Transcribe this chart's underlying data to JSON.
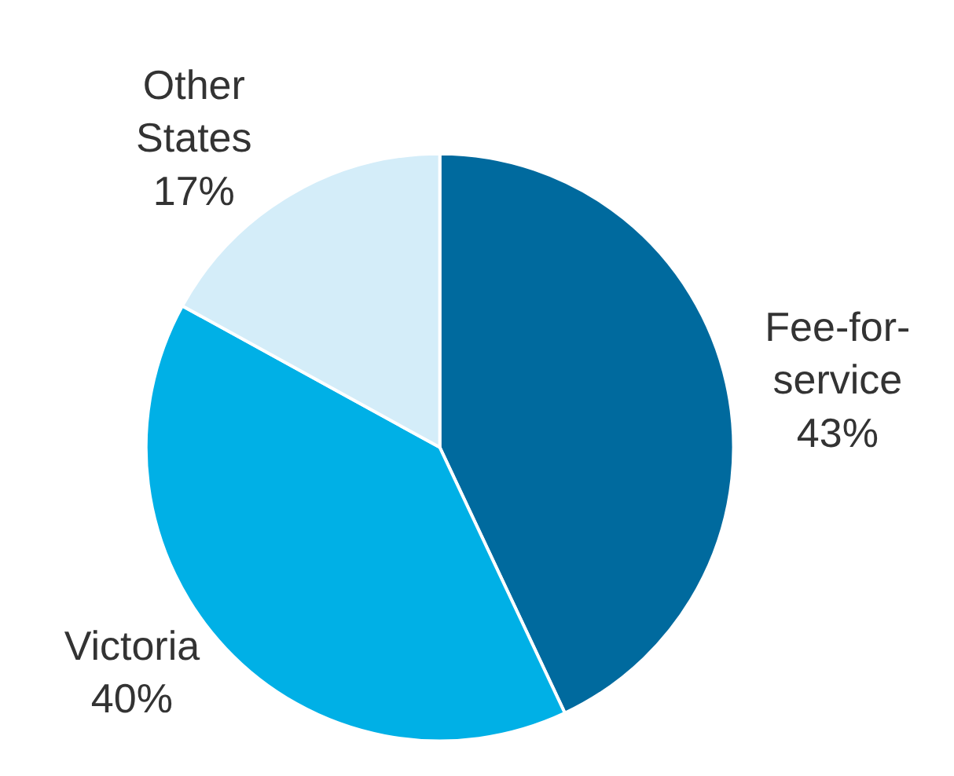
{
  "chart_data": {
    "type": "pie",
    "categories": [
      "Fee-for-service",
      "Victoria",
      "Other States"
    ],
    "values": [
      43,
      40,
      17
    ],
    "colors": [
      "#006a9e",
      "#00b0e6",
      "#d4edf9"
    ],
    "value_labels": [
      "43%",
      "40%",
      "17%"
    ],
    "legend": false
  }
}
